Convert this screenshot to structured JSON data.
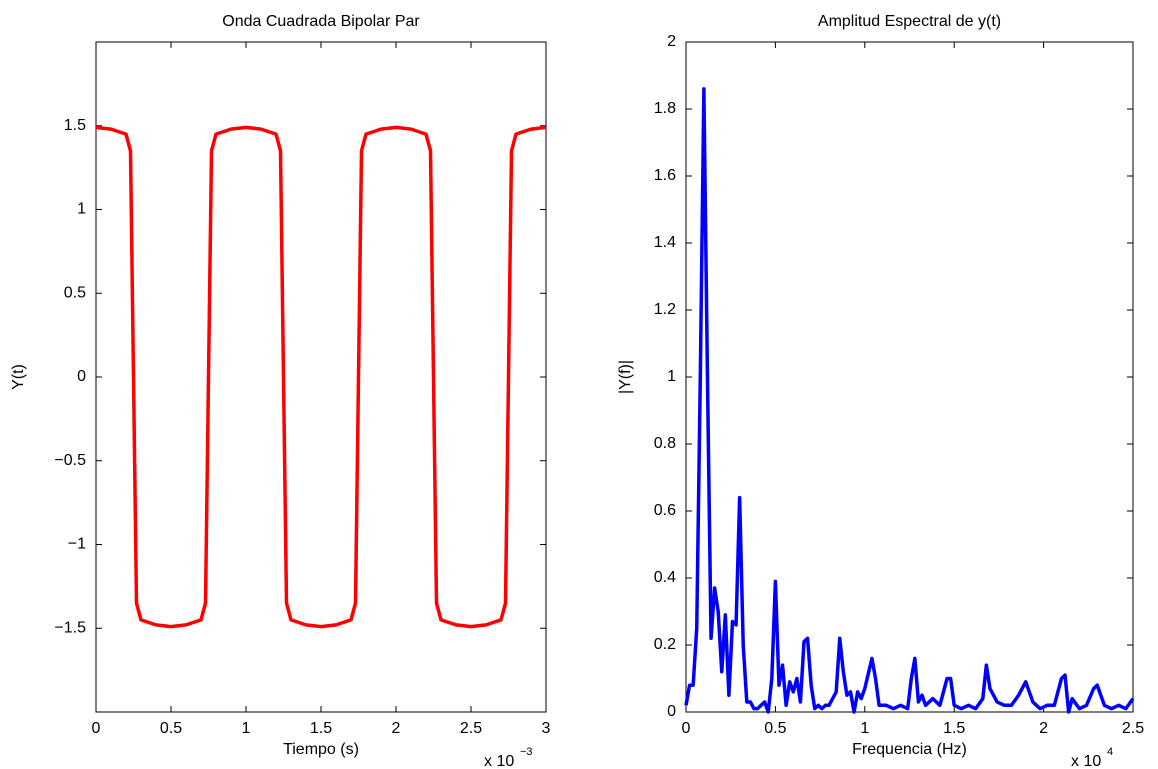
{
  "chart_data": [
    {
      "type": "line",
      "title": "Onda Cuadrada Bipolar Par",
      "x_label": "Tiempo (s)",
      "y_label": "Y(t)",
      "x_multiplier": "x 10",
      "x_exponent": "−3",
      "x": [
        0,
        0.1,
        0.2,
        0.23,
        0.27,
        0.3,
        0.4,
        0.5,
        0.6,
        0.7,
        0.73,
        0.77,
        0.8,
        0.9,
        1.0,
        1.1,
        1.2,
        1.23,
        1.27,
        1.3,
        1.4,
        1.5,
        1.6,
        1.7,
        1.73,
        1.77,
        1.8,
        1.9,
        2.0,
        2.1,
        2.2,
        2.23,
        2.27,
        2.3,
        2.4,
        2.5,
        2.6,
        2.7,
        2.73,
        2.77,
        2.8,
        2.9,
        3.0
      ],
      "series": [
        {
          "color": "#ff0000",
          "values": [
            1.49,
            1.48,
            1.45,
            1.35,
            -1.35,
            -1.45,
            -1.48,
            -1.49,
            -1.48,
            -1.45,
            -1.35,
            1.35,
            1.45,
            1.48,
            1.49,
            1.48,
            1.45,
            1.35,
            -1.35,
            -1.45,
            -1.48,
            -1.49,
            -1.48,
            -1.45,
            -1.35,
            1.35,
            1.45,
            1.48,
            1.49,
            1.48,
            1.45,
            1.35,
            -1.35,
            -1.45,
            -1.48,
            -1.49,
            -1.48,
            -1.45,
            -1.35,
            1.35,
            1.45,
            1.48,
            1.49
          ]
        }
      ],
      "xlim": [
        0,
        3
      ],
      "xticks": [
        0,
        0.5,
        1,
        1.5,
        2,
        2.5,
        3
      ],
      "ylim": [
        -2,
        2
      ],
      "yticks": [
        1.5,
        1,
        0.5,
        0,
        {
          "value": -0.5,
          "label": "−0.5"
        },
        {
          "value": -1,
          "label": "−1"
        },
        {
          "value": -1.5,
          "label": "−1.5"
        }
      ]
    },
    {
      "type": "line",
      "title": "Amplitud Espectral de y(t)",
      "x_label": "Frequencia (Hz)",
      "y_label": "|Y(f)|",
      "x_multiplier": "x 10",
      "x_exponent": "4",
      "x": [
        0,
        0.02,
        0.04,
        0.06,
        0.08,
        0.1,
        0.12,
        0.14,
        0.16,
        0.18,
        0.2,
        0.22,
        0.24,
        0.26,
        0.28,
        0.3,
        0.32,
        0.34,
        0.36,
        0.38,
        0.4,
        0.42,
        0.44,
        0.46,
        0.48,
        0.5,
        0.52,
        0.54,
        0.56,
        0.58,
        0.6,
        0.62,
        0.64,
        0.66,
        0.68,
        0.7,
        0.72,
        0.74,
        0.76,
        0.78,
        0.8,
        0.84,
        0.86,
        0.88,
        0.9,
        0.92,
        0.94,
        0.96,
        0.98,
        1.0,
        1.04,
        1.06,
        1.08,
        1.12,
        1.16,
        1.2,
        1.24,
        1.26,
        1.28,
        1.3,
        1.32,
        1.34,
        1.38,
        1.42,
        1.46,
        1.48,
        1.5,
        1.54,
        1.58,
        1.62,
        1.66,
        1.68,
        1.7,
        1.74,
        1.78,
        1.82,
        1.86,
        1.9,
        1.94,
        1.98,
        2.02,
        2.06,
        2.1,
        2.12,
        2.14,
        2.16,
        2.2,
        2.24,
        2.28,
        2.3,
        2.34,
        2.38,
        2.42,
        2.46,
        2.5
      ],
      "series": [
        {
          "color": "#0000ff",
          "values": [
            0.02,
            0.08,
            0.08,
            0.25,
            1.0,
            1.86,
            1.0,
            0.22,
            0.37,
            0.3,
            0.12,
            0.29,
            0.05,
            0.27,
            0.26,
            0.64,
            0.2,
            0.03,
            0.03,
            0.01,
            0.01,
            0.02,
            0.03,
            0.0,
            0.1,
            0.39,
            0.08,
            0.14,
            0.02,
            0.09,
            0.06,
            0.1,
            0.03,
            0.21,
            0.22,
            0.08,
            0.01,
            0.02,
            0.01,
            0.02,
            0.02,
            0.06,
            0.22,
            0.12,
            0.05,
            0.06,
            0.0,
            0.06,
            0.04,
            0.07,
            0.16,
            0.1,
            0.02,
            0.02,
            0.01,
            0.02,
            0.01,
            0.1,
            0.16,
            0.03,
            0.05,
            0.02,
            0.04,
            0.02,
            0.1,
            0.1,
            0.02,
            0.01,
            0.02,
            0.01,
            0.04,
            0.14,
            0.07,
            0.03,
            0.02,
            0.02,
            0.05,
            0.09,
            0.03,
            0.01,
            0.02,
            0.02,
            0.1,
            0.11,
            0.0,
            0.04,
            0.01,
            0.02,
            0.07,
            0.08,
            0.02,
            0.01,
            0.02,
            0.01,
            0.04
          ]
        }
      ],
      "xlim": [
        0,
        2.5
      ],
      "xticks": [
        0,
        0.5,
        1,
        1.5,
        2,
        2.5
      ],
      "ylim": [
        0,
        2
      ],
      "yticks": [
        0,
        0.2,
        0.4,
        0.6,
        0.8,
        1,
        1.2,
        1.4,
        1.6,
        1.8,
        2
      ]
    }
  ]
}
